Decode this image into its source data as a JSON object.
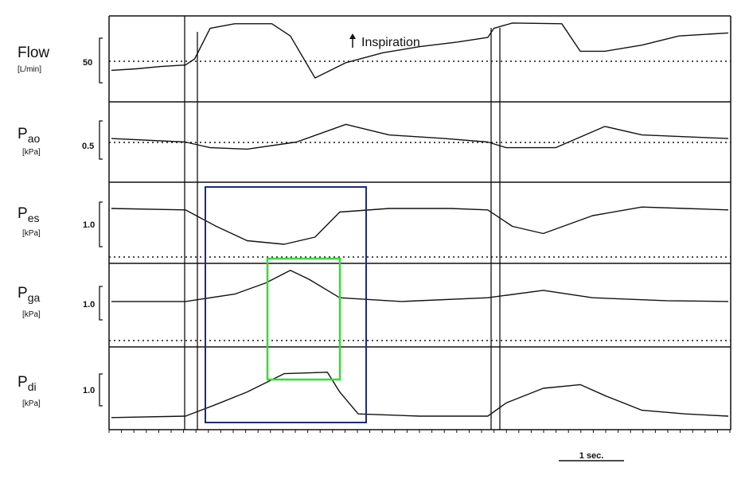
{
  "chart_data": {
    "type": "line",
    "annotation": "Inspiration",
    "time_scale_label": "1 sec.",
    "box_colors": {
      "blue": "#1e2a7a",
      "green": "#33dd33"
    },
    "traces": [
      {
        "name": "Flow",
        "unit": "[L/min]",
        "scale_label": "50",
        "points": [
          [
            0,
            0.35
          ],
          [
            0.04,
            0.37
          ],
          [
            0.08,
            0.4
          ],
          [
            0.12,
            0.42
          ],
          [
            0.135,
            0.5
          ],
          [
            0.16,
            0.9
          ],
          [
            0.2,
            0.96
          ],
          [
            0.26,
            0.96
          ],
          [
            0.29,
            0.8
          ],
          [
            0.33,
            0.25
          ],
          [
            0.38,
            0.45
          ],
          [
            0.44,
            0.58
          ],
          [
            0.5,
            0.66
          ],
          [
            0.56,
            0.72
          ],
          [
            0.61,
            0.78
          ],
          [
            0.62,
            0.9
          ],
          [
            0.65,
            0.97
          ],
          [
            0.73,
            0.96
          ],
          [
            0.76,
            0.6
          ],
          [
            0.8,
            0.6
          ],
          [
            0.86,
            0.68
          ],
          [
            0.92,
            0.8
          ],
          [
            1.0,
            0.84
          ]
        ]
      },
      {
        "name": "Pao",
        "unit": "[kPa]",
        "scale_label": "0.5",
        "points": [
          [
            0,
            0.55
          ],
          [
            0.12,
            0.5
          ],
          [
            0.16,
            0.42
          ],
          [
            0.22,
            0.4
          ],
          [
            0.3,
            0.5
          ],
          [
            0.38,
            0.75
          ],
          [
            0.45,
            0.6
          ],
          [
            0.54,
            0.55
          ],
          [
            0.61,
            0.5
          ],
          [
            0.64,
            0.42
          ],
          [
            0.72,
            0.42
          ],
          [
            0.8,
            0.72
          ],
          [
            0.86,
            0.6
          ],
          [
            1.0,
            0.55
          ]
        ]
      },
      {
        "name": "Pes",
        "unit": "[kPa]",
        "scale_label": "1.0",
        "points": [
          [
            0,
            0.7
          ],
          [
            0.12,
            0.68
          ],
          [
            0.17,
            0.45
          ],
          [
            0.22,
            0.25
          ],
          [
            0.28,
            0.2
          ],
          [
            0.33,
            0.3
          ],
          [
            0.37,
            0.65
          ],
          [
            0.45,
            0.7
          ],
          [
            0.55,
            0.7
          ],
          [
            0.61,
            0.68
          ],
          [
            0.65,
            0.45
          ],
          [
            0.7,
            0.35
          ],
          [
            0.78,
            0.6
          ],
          [
            0.86,
            0.72
          ],
          [
            0.93,
            0.7
          ],
          [
            1.0,
            0.68
          ]
        ]
      },
      {
        "name": "Pga",
        "unit": "[kPa]",
        "scale_label": "1.0",
        "points": [
          [
            0,
            0.55
          ],
          [
            0.12,
            0.55
          ],
          [
            0.2,
            0.65
          ],
          [
            0.25,
            0.8
          ],
          [
            0.29,
            0.97
          ],
          [
            0.32,
            0.85
          ],
          [
            0.37,
            0.6
          ],
          [
            0.47,
            0.55
          ],
          [
            0.61,
            0.6
          ],
          [
            0.7,
            0.7
          ],
          [
            0.78,
            0.6
          ],
          [
            0.9,
            0.56
          ],
          [
            1.0,
            0.55
          ]
        ]
      },
      {
        "name": "Pdi",
        "unit": "[kPa]",
        "scale_label": "1.0",
        "points": [
          [
            0,
            0.1
          ],
          [
            0.12,
            0.12
          ],
          [
            0.17,
            0.28
          ],
          [
            0.22,
            0.45
          ],
          [
            0.28,
            0.7
          ],
          [
            0.35,
            0.72
          ],
          [
            0.37,
            0.45
          ],
          [
            0.4,
            0.15
          ],
          [
            0.5,
            0.12
          ],
          [
            0.61,
            0.12
          ],
          [
            0.64,
            0.3
          ],
          [
            0.7,
            0.5
          ],
          [
            0.76,
            0.55
          ],
          [
            0.8,
            0.4
          ],
          [
            0.86,
            0.2
          ],
          [
            0.93,
            0.15
          ],
          [
            1.0,
            0.12
          ]
        ]
      }
    ]
  }
}
